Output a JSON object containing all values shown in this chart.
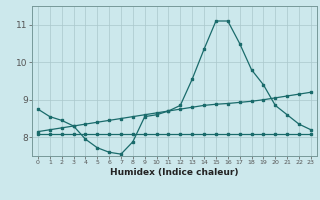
{
  "xlabel": "Humidex (Indice chaleur)",
  "bg_color": "#cce8ec",
  "grid_color": "#aac8cc",
  "line_color": "#1a6b6b",
  "ylim": [
    7.5,
    11.5
  ],
  "y_ticks": [
    8,
    9,
    10,
    11
  ],
  "xlim": [
    -0.5,
    23.5
  ],
  "x_ticks": [
    0,
    1,
    2,
    3,
    4,
    5,
    6,
    7,
    8,
    9,
    10,
    11,
    12,
    13,
    14,
    15,
    16,
    17,
    18,
    19,
    20,
    21,
    22,
    23
  ],
  "line1": [
    8.75,
    8.55,
    8.45,
    8.3,
    7.95,
    7.72,
    7.6,
    7.55,
    7.88,
    8.55,
    8.6,
    8.7,
    8.85,
    9.55,
    10.35,
    11.1,
    11.1,
    10.5,
    9.8,
    9.4,
    8.85,
    8.6,
    8.35,
    8.2
  ],
  "line2": [
    8.1,
    8.1,
    8.1,
    8.1,
    8.1,
    8.1,
    8.1,
    8.1,
    8.1,
    8.1,
    8.1,
    8.1,
    8.1,
    8.1,
    8.1,
    8.1,
    8.1,
    8.1,
    8.1,
    8.1,
    8.1,
    8.1,
    8.1,
    8.1
  ],
  "line3": [
    8.15,
    8.2,
    8.25,
    8.3,
    8.35,
    8.4,
    8.45,
    8.5,
    8.55,
    8.6,
    8.65,
    8.7,
    8.75,
    8.8,
    8.85,
    8.88,
    8.9,
    8.93,
    8.96,
    9.0,
    9.05,
    9.1,
    9.15,
    9.2
  ],
  "figwidth": 3.2,
  "figheight": 2.0,
  "dpi": 100
}
